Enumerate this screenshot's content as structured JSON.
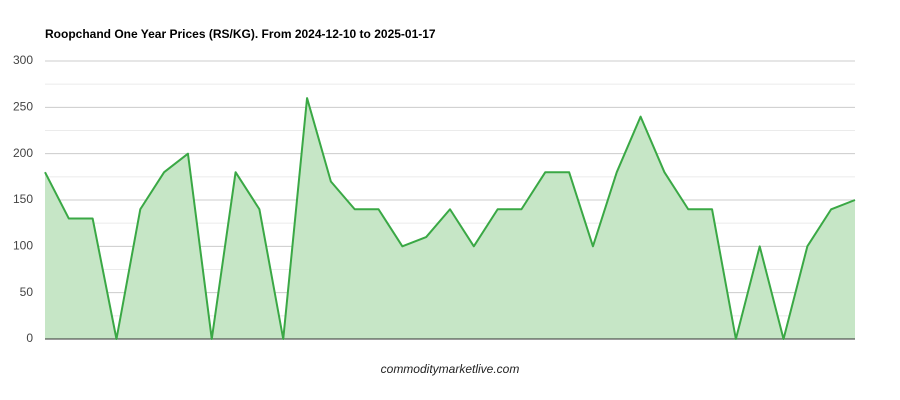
{
  "chart_data": {
    "type": "area",
    "title": "Roopchand One Year Prices (RS/KG). From 2024-12-10 to 2025-01-17",
    "footer": "commoditymarketlive.com",
    "values": [
      180,
      130,
      130,
      0,
      140,
      180,
      200,
      0,
      180,
      140,
      0,
      260,
      170,
      140,
      140,
      100,
      110,
      140,
      100,
      140,
      140,
      180,
      180,
      100,
      180,
      240,
      180,
      140,
      140,
      0,
      100,
      0,
      100,
      140,
      150
    ],
    "color": "#3aa845",
    "fill_color": "#c6e6c6",
    "ylim": [
      0,
      300
    ],
    "yticks": [
      0,
      50,
      100,
      150,
      200,
      250,
      300
    ],
    "minor_yticks": [
      25,
      75,
      125,
      175,
      225,
      275
    ],
    "grid": true
  }
}
